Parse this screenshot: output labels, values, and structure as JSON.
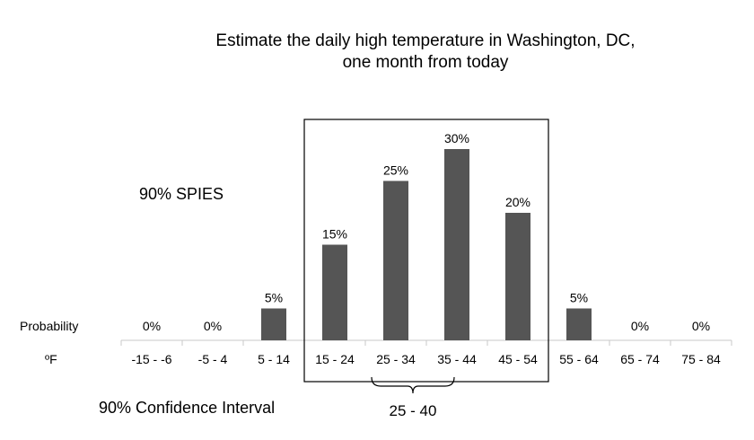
{
  "chart_data": {
    "type": "bar",
    "title": [
      "Estimate the daily high temperature in Washington, DC,",
      "one month from today"
    ],
    "xlabel": "ºF",
    "ylabel": "Probability",
    "categories": [
      "-15 - -6",
      "-5 - 4",
      "5 - 14",
      "15 - 24",
      "25 - 34",
      "35 - 44",
      "45 - 54",
      "55 - 64",
      "65 - 74",
      "75 - 84"
    ],
    "values": [
      0,
      0,
      5,
      15,
      25,
      30,
      20,
      5,
      0,
      0
    ],
    "value_labels": [
      "0%",
      "0%",
      "5%",
      "15%",
      "25%",
      "30%",
      "20%",
      "5%",
      "0%",
      "0%"
    ],
    "ylim": [
      0,
      30
    ],
    "grid": false,
    "bar_color": "#555555",
    "annotations": {
      "spies_label": "90% SPIES",
      "spies_box_categories": [
        "15 - 24",
        "45 - 54"
      ],
      "ci_label": "90% Confidence Interval",
      "ci_range_label": "25 - 40",
      "ci_range": [
        25,
        40
      ]
    }
  }
}
